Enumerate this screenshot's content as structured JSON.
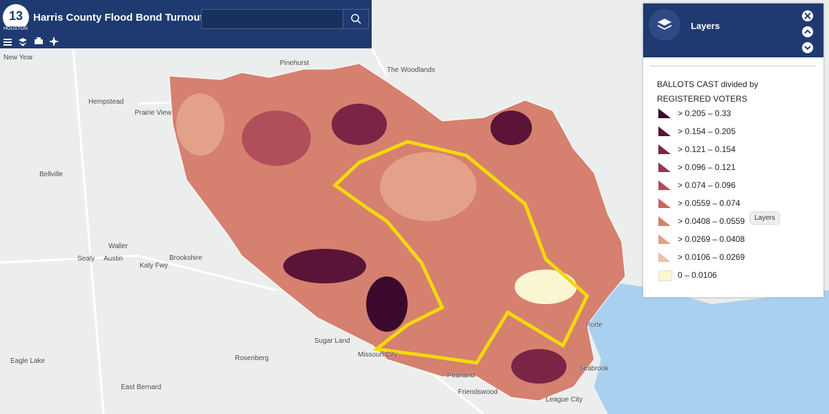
{
  "header": {
    "title": "Harris County Flood Bond Turnout",
    "logo_number": "13",
    "logo_city": "HOUSTON"
  },
  "panel": {
    "title": "Layers",
    "legend_title": [
      "BALLOTS CAST divided by",
      "REGISTERED VOTERS"
    ],
    "classes": [
      {
        "label": "> 0.205 – 0.33",
        "color": "#3b0a2e"
      },
      {
        "label": "> 0.154 – 0.205",
        "color": "#5a1438"
      },
      {
        "label": "> 0.121 – 0.154",
        "color": "#7a2545"
      },
      {
        "label": "> 0.096 – 0.121",
        "color": "#93394f"
      },
      {
        "label": "> 0.074 – 0.096",
        "color": "#b04f5a"
      },
      {
        "label": "> 0.0559 – 0.074",
        "color": "#c56562"
      },
      {
        "label": "> 0.0408 – 0.0559",
        "color": "#d6806f"
      },
      {
        "label": "> 0.0269 – 0.0408",
        "color": "#e3a18a"
      },
      {
        "label": "> 0.0106 – 0.0269",
        "color": "#ecc1a6"
      },
      {
        "label": "0 – 0.0106",
        "color": "#fbf6d2"
      }
    ],
    "tooltip": "Layers"
  },
  "places": [
    "The Woodlands",
    "Pinehurst",
    "Hempstead",
    "Prairie View",
    "Bellville",
    "Waller",
    "Sealy",
    "Brookshire",
    "Katy Fwy",
    "Sugar Land",
    "Missouri City",
    "Rosenberg",
    "Eagle Lake",
    "East Bernard",
    "Pearland",
    "Friendswood",
    "League City",
    "Seabrook",
    "Porte",
    "Austin",
    "New Year"
  ]
}
